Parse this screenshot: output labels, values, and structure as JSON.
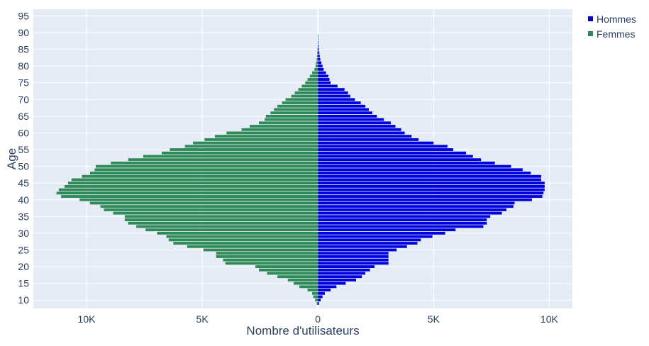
{
  "chart_data": {
    "type": "bar",
    "orientation": "horizontal",
    "barmode": "overlay",
    "xlabel": "Nombre d'utilisateurs",
    "ylabel": "Age",
    "xlim": [
      -12300,
      11000
    ],
    "ylim": [
      7.5,
      97
    ],
    "x_ticks": [
      {
        "value": -10000,
        "label": "10K"
      },
      {
        "value": -5000,
        "label": "5K"
      },
      {
        "value": 0,
        "label": "0"
      },
      {
        "value": 5000,
        "label": "5K"
      },
      {
        "value": 10000,
        "label": "10K"
      }
    ],
    "y_ticks": [
      10,
      15,
      20,
      25,
      30,
      35,
      40,
      45,
      50,
      55,
      60,
      65,
      70,
      75,
      80,
      85,
      90,
      95
    ],
    "legend": {
      "position": "top-right"
    },
    "colors": {
      "plot_bg": "#e5ecf6",
      "grid": "#ffffff",
      "hommes": "#0000dd",
      "femmes": "#2e8b57"
    },
    "ages": [
      9,
      10,
      11,
      12,
      13,
      14,
      15,
      16,
      17,
      18,
      19,
      20,
      21,
      22,
      23,
      24,
      25,
      26,
      27,
      28,
      29,
      30,
      31,
      32,
      33,
      34,
      35,
      36,
      37,
      38,
      39,
      40,
      41,
      42,
      43,
      44,
      45,
      46,
      47,
      48,
      49,
      50,
      51,
      52,
      53,
      54,
      55,
      56,
      57,
      58,
      59,
      60,
      61,
      62,
      63,
      64,
      65,
      66,
      67,
      68,
      69,
      70,
      71,
      72,
      73,
      74,
      75,
      76,
      77,
      78,
      79,
      80,
      81,
      82,
      83,
      84,
      85,
      86,
      87,
      88,
      89
    ],
    "series": [
      {
        "name": "Hommes",
        "values": [
          50,
          120,
          200,
          300,
          550,
          800,
          1200,
          1650,
          1900,
          2050,
          2250,
          2450,
          3050,
          3050,
          3050,
          3050,
          3400,
          3850,
          4300,
          4450,
          4950,
          5500,
          5950,
          7150,
          7300,
          7300,
          7450,
          7950,
          8150,
          8450,
          8500,
          9250,
          9700,
          9750,
          9800,
          9800,
          9800,
          9650,
          9650,
          9200,
          8850,
          8350,
          7650,
          7050,
          6700,
          6400,
          5850,
          5600,
          5000,
          4350,
          4050,
          3750,
          3600,
          3350,
          3150,
          2850,
          2550,
          2350,
          2200,
          2050,
          1850,
          1600,
          1400,
          1300,
          1150,
          850,
          550,
          500,
          450,
          350,
          250,
          200,
          150,
          100,
          80,
          60,
          40,
          30,
          20,
          10,
          5
        ]
      },
      {
        "name": "Femmes",
        "values": [
          -50,
          -120,
          -200,
          -250,
          -450,
          -800,
          -1050,
          -1300,
          -1750,
          -2200,
          -2550,
          -2700,
          -4000,
          -4100,
          -4400,
          -4400,
          -4950,
          -5650,
          -6250,
          -6450,
          -6550,
          -6950,
          -7450,
          -7850,
          -8200,
          -8350,
          -8350,
          -8850,
          -9250,
          -9400,
          -9850,
          -10300,
          -11100,
          -11300,
          -11200,
          -10950,
          -10800,
          -10650,
          -10200,
          -9850,
          -9650,
          -9600,
          -8950,
          -8200,
          -7550,
          -6750,
          -6400,
          -5750,
          -5400,
          -4900,
          -4450,
          -3950,
          -3300,
          -2950,
          -2550,
          -2300,
          -2250,
          -2050,
          -1900,
          -1750,
          -1550,
          -1400,
          -1150,
          -1000,
          -850,
          -700,
          -550,
          -450,
          -350,
          -250,
          -150,
          -100,
          -80,
          -50,
          -40,
          -30,
          -20,
          -10,
          -5,
          -3,
          -2
        ]
      }
    ]
  }
}
